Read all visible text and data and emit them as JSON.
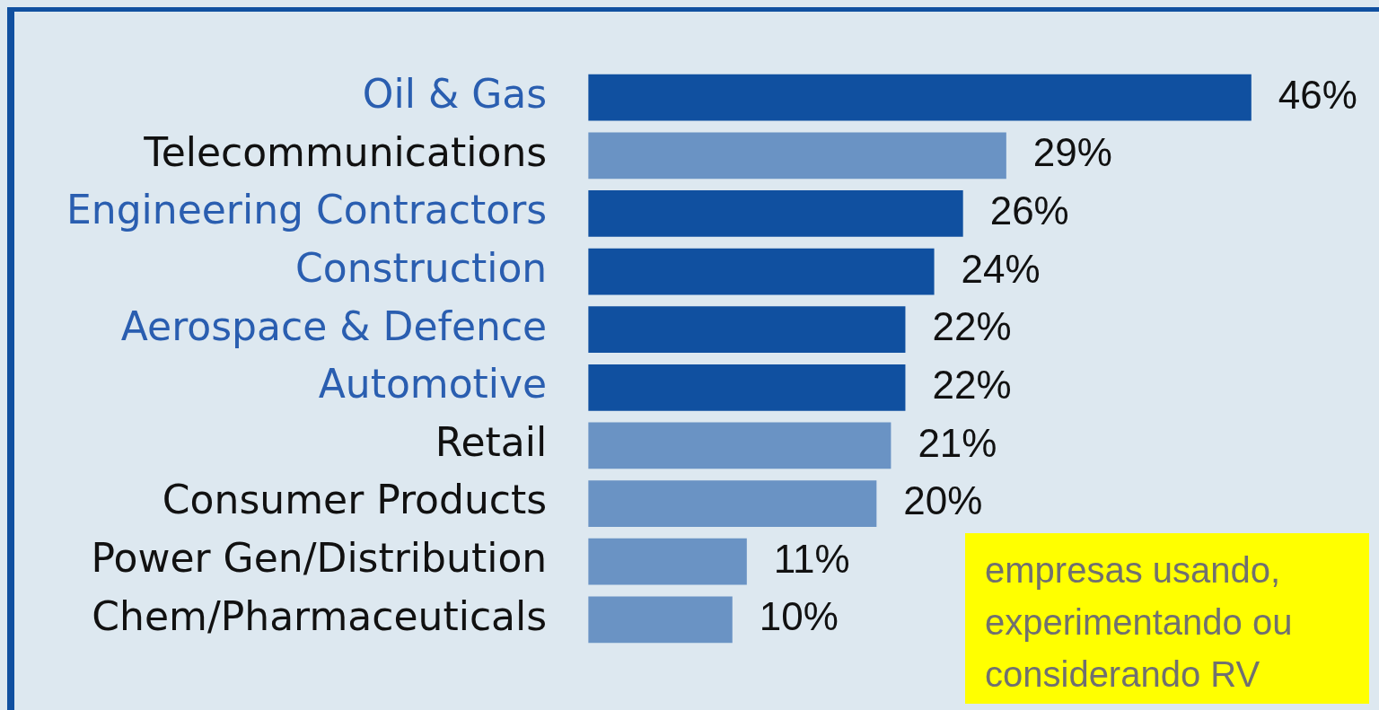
{
  "chart_data": {
    "type": "bar",
    "orientation": "horizontal",
    "categories": [
      "Oil & Gas",
      "Telecommunications",
      "Engineering Contractors",
      "Construction",
      "Aerospace & Defence",
      "Automotive",
      "Retail",
      "Consumer Products",
      "Power Gen/Distribution",
      "Chem/Pharmaceuticals"
    ],
    "values": [
      46,
      29,
      26,
      24,
      22,
      22,
      21,
      20,
      11,
      10
    ],
    "colors": [
      "#1050a0",
      "#6a93c4",
      "#1050a0",
      "#1050a0",
      "#1050a0",
      "#1050a0",
      "#6a93c4",
      "#6a93c4",
      "#6a93c4",
      "#6a93c4"
    ],
    "value_labels": [
      "46%",
      "29%",
      "26%",
      "24%",
      "22%",
      "22%",
      "21%",
      "20%",
      "11%",
      "10%"
    ],
    "legend": false,
    "annotations": [
      "empresas usando, experimentando ou considerando RV"
    ]
  }
}
